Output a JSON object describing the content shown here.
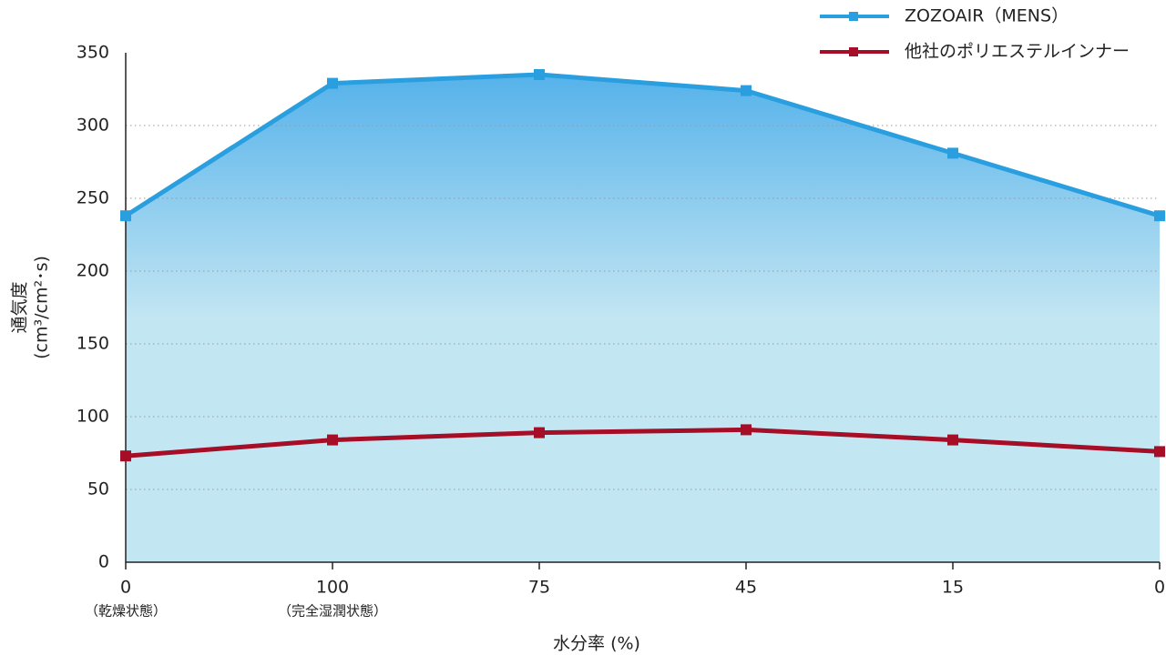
{
  "chart_data": {
    "type": "line",
    "categories": [
      "0",
      "100",
      "75",
      "45",
      "15",
      "0"
    ],
    "category_notes": [
      "（乾燥状態）",
      "（完全湿潤状態）",
      null,
      null,
      null,
      null
    ],
    "x_label": "水分率 (%)",
    "y_label": [
      "通気度",
      "(cm³/cm²･s)"
    ],
    "series": [
      {
        "name": "ZOZOAIR（MENS）",
        "color": "#2a9fe0",
        "values": [
          238,
          329,
          335,
          324,
          281,
          238
        ],
        "area": true
      },
      {
        "name": "他社のポリエステルインナー",
        "color": "#a50e26",
        "values": [
          73,
          84,
          89,
          91,
          84,
          76
        ]
      }
    ],
    "ylim": [
      0,
      350
    ],
    "yticks": [
      0,
      50,
      100,
      150,
      200,
      250,
      300,
      350
    ],
    "grid": true
  }
}
